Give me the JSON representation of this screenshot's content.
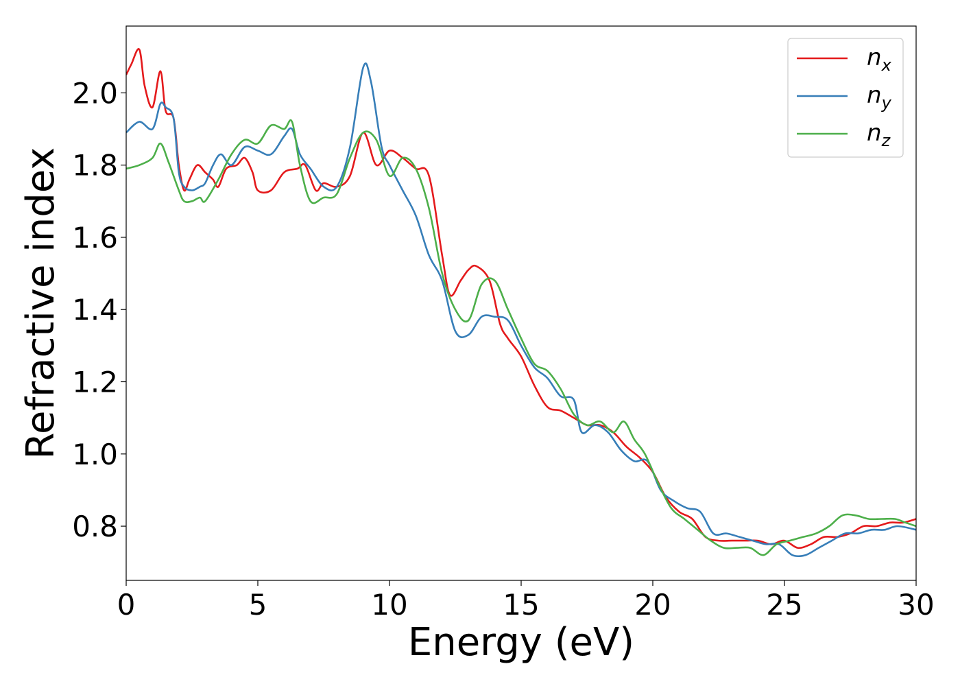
{
  "chart_data": {
    "type": "line",
    "xlabel": "Energy (eV)",
    "ylabel": "Refractive index",
    "xlim": [
      0,
      30
    ],
    "ylim": [
      0.65,
      2.185
    ],
    "xticks": [
      0,
      5,
      10,
      15,
      20,
      25,
      30
    ],
    "xtick_labels": [
      "0",
      "5",
      "10",
      "15",
      "20",
      "25",
      "30"
    ],
    "yticks": [
      0.8,
      1.0,
      1.2,
      1.4,
      1.6,
      1.8,
      2.0
    ],
    "ytick_labels": [
      "0.8",
      "1.0",
      "1.2",
      "1.4",
      "1.6",
      "1.8",
      "2.0"
    ],
    "grid": false,
    "legend_position": "top-right",
    "series": [
      {
        "name": "n_x",
        "label_base": "n",
        "label_sub": "x",
        "color": "#e41a1c",
        "x": [
          0,
          0.2,
          0.5,
          0.7,
          1.0,
          1.3,
          1.5,
          1.8,
          2.0,
          2.2,
          2.4,
          2.7,
          3.0,
          3.3,
          3.5,
          3.8,
          4.2,
          4.5,
          4.8,
          5.0,
          5.5,
          6.0,
          6.5,
          6.8,
          7.2,
          7.5,
          8.0,
          8.5,
          9.0,
          9.5,
          10.0,
          10.5,
          11.0,
          11.5,
          12.0,
          12.3,
          12.7,
          13.0,
          13.3,
          13.8,
          14.2,
          14.5,
          15.0,
          15.5,
          16.0,
          16.5,
          17.0,
          17.5,
          18.0,
          18.5,
          19.0,
          19.5,
          20.0,
          20.5,
          21.0,
          21.5,
          22.0,
          22.5,
          23.0,
          23.5,
          24.0,
          24.5,
          25.0,
          25.5,
          26.0,
          26.5,
          27.0,
          27.5,
          28.0,
          28.5,
          29.0,
          29.5,
          30.0
        ],
        "y": [
          2.05,
          2.08,
          2.12,
          2.02,
          1.96,
          2.06,
          1.95,
          1.93,
          1.8,
          1.73,
          1.76,
          1.8,
          1.78,
          1.76,
          1.74,
          1.79,
          1.8,
          1.82,
          1.78,
          1.73,
          1.73,
          1.78,
          1.79,
          1.8,
          1.73,
          1.75,
          1.74,
          1.77,
          1.89,
          1.8,
          1.84,
          1.82,
          1.79,
          1.77,
          1.55,
          1.44,
          1.48,
          1.51,
          1.52,
          1.48,
          1.36,
          1.32,
          1.27,
          1.19,
          1.13,
          1.12,
          1.1,
          1.08,
          1.08,
          1.06,
          1.02,
          0.99,
          0.95,
          0.88,
          0.84,
          0.82,
          0.77,
          0.76,
          0.76,
          0.76,
          0.76,
          0.75,
          0.76,
          0.74,
          0.75,
          0.77,
          0.77,
          0.78,
          0.8,
          0.8,
          0.81,
          0.81,
          0.82
        ]
      },
      {
        "name": "n_y",
        "label_base": "n",
        "label_sub": "y",
        "color": "#377eb8",
        "x": [
          0,
          0.5,
          1.0,
          1.3,
          1.5,
          1.8,
          2.0,
          2.2,
          2.5,
          2.8,
          3.0,
          3.3,
          3.6,
          4.0,
          4.5,
          5.0,
          5.5,
          6.0,
          6.3,
          6.6,
          7.0,
          7.5,
          8.0,
          8.5,
          9.0,
          9.3,
          9.7,
          10.0,
          10.5,
          11.0,
          11.5,
          12.0,
          12.5,
          13.0,
          13.5,
          14.0,
          14.5,
          15.0,
          15.5,
          16.0,
          16.5,
          17.0,
          17.3,
          17.8,
          18.3,
          18.8,
          19.3,
          19.8,
          20.3,
          20.8,
          21.3,
          21.8,
          22.3,
          22.8,
          23.3,
          23.8,
          24.3,
          24.8,
          25.3,
          25.8,
          26.3,
          26.8,
          27.3,
          27.8,
          28.3,
          28.8,
          29.3,
          30.0
        ],
        "y": [
          1.89,
          1.92,
          1.9,
          1.97,
          1.96,
          1.93,
          1.78,
          1.74,
          1.73,
          1.74,
          1.75,
          1.8,
          1.83,
          1.8,
          1.85,
          1.84,
          1.83,
          1.88,
          1.9,
          1.83,
          1.79,
          1.74,
          1.74,
          1.85,
          2.07,
          2.03,
          1.85,
          1.8,
          1.73,
          1.66,
          1.55,
          1.48,
          1.34,
          1.33,
          1.38,
          1.38,
          1.37,
          1.3,
          1.24,
          1.21,
          1.16,
          1.15,
          1.06,
          1.08,
          1.06,
          1.01,
          0.98,
          0.98,
          0.9,
          0.87,
          0.85,
          0.84,
          0.78,
          0.78,
          0.77,
          0.76,
          0.75,
          0.75,
          0.72,
          0.72,
          0.74,
          0.76,
          0.78,
          0.78,
          0.79,
          0.79,
          0.8,
          0.79
        ]
      },
      {
        "name": "n_z",
        "label_base": "n",
        "label_sub": "z",
        "color": "#4daf4a",
        "x": [
          0,
          0.5,
          1.0,
          1.3,
          1.6,
          2.0,
          2.2,
          2.5,
          2.8,
          3.0,
          3.5,
          4.0,
          4.5,
          5.0,
          5.5,
          6.0,
          6.3,
          6.6,
          7.0,
          7.5,
          8.0,
          8.5,
          9.0,
          9.5,
          10.0,
          10.5,
          11.0,
          11.5,
          12.0,
          12.5,
          13.0,
          13.5,
          14.0,
          14.5,
          15.0,
          15.5,
          16.0,
          16.5,
          17.0,
          17.5,
          18.0,
          18.5,
          18.9,
          19.3,
          19.7,
          20.2,
          20.7,
          21.2,
          21.7,
          22.2,
          22.7,
          23.2,
          23.7,
          24.2,
          24.7,
          25.2,
          25.7,
          26.2,
          26.7,
          27.2,
          27.7,
          28.2,
          28.7,
          29.2,
          29.6,
          30.0
        ],
        "y": [
          1.79,
          1.8,
          1.82,
          1.86,
          1.81,
          1.73,
          1.7,
          1.7,
          1.71,
          1.7,
          1.76,
          1.83,
          1.87,
          1.86,
          1.91,
          1.9,
          1.92,
          1.8,
          1.7,
          1.71,
          1.72,
          1.82,
          1.89,
          1.87,
          1.77,
          1.82,
          1.79,
          1.68,
          1.5,
          1.4,
          1.37,
          1.47,
          1.48,
          1.4,
          1.32,
          1.25,
          1.23,
          1.18,
          1.11,
          1.08,
          1.09,
          1.06,
          1.09,
          1.04,
          1.0,
          0.92,
          0.85,
          0.82,
          0.79,
          0.76,
          0.74,
          0.74,
          0.74,
          0.72,
          0.75,
          0.76,
          0.77,
          0.78,
          0.8,
          0.83,
          0.83,
          0.82,
          0.82,
          0.82,
          0.81,
          0.8
        ]
      }
    ]
  }
}
